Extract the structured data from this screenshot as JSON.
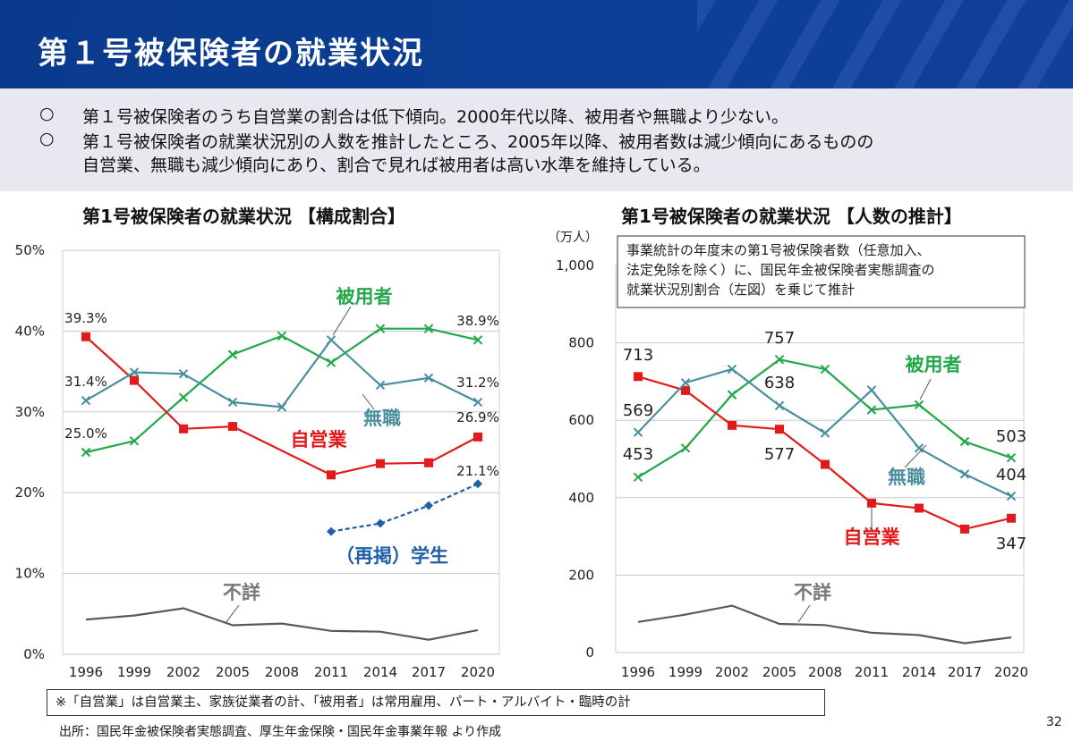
{
  "title": "第１号被保険者の就業状況",
  "summary": {
    "bullet_symbol": "○",
    "line1": "第１号被保険者のうち自営業の割合は低下傾向。2000年代以降、被用者や無職より少ない。",
    "line2": "第１号被保険者の就業状況別の人数を推計したところ、2005年以降、被用者数は減少傾向にあるものの",
    "line3": "自営業、無職も減少傾向にあり、割合で見れば被用者は高い水準を維持している。"
  },
  "chart_data": [
    {
      "type": "line",
      "title": "第1号被保険者の就業状況 【構成割合】",
      "x": [
        "1996",
        "1999",
        "2002",
        "2005",
        "2008",
        "2011",
        "2014",
        "2017",
        "2020"
      ],
      "ylim": [
        0,
        50
      ],
      "yticks": [
        "0%",
        "10%",
        "20%",
        "30%",
        "40%",
        "50%"
      ],
      "series": [
        {
          "name": "被用者",
          "color": "#22a84a",
          "marker": "x",
          "values": [
            25.0,
            26.4,
            31.8,
            37.1,
            39.4,
            36.1,
            40.3,
            40.3,
            38.9
          ]
        },
        {
          "name": "自営業",
          "color": "#e31a1c",
          "marker": "square",
          "values": [
            39.3,
            33.9,
            27.9,
            28.2,
            null,
            22.2,
            23.6,
            23.7,
            26.9
          ]
        },
        {
          "name": "無職",
          "color": "#4a8f9f",
          "marker": "x",
          "values": [
            31.4,
            34.9,
            34.7,
            31.2,
            30.6,
            38.9,
            33.3,
            34.2,
            31.2
          ]
        },
        {
          "name": "（再掲）学生",
          "color": "#1f5fa8",
          "marker": "diamond",
          "dashed": true,
          "values": [
            null,
            null,
            null,
            null,
            null,
            15.2,
            16.2,
            18.4,
            21.1
          ]
        },
        {
          "name": "不詳",
          "color": "#595959",
          "marker": "none",
          "values": [
            4.3,
            4.8,
            5.7,
            3.6,
            3.8,
            2.9,
            2.8,
            1.8,
            3.0
          ]
        }
      ],
      "data_labels": [
        "39.3%",
        "31.4%",
        "25.0%",
        "38.9%",
        "31.2%",
        "26.9%",
        "21.1%"
      ]
    },
    {
      "type": "line",
      "title": "第1号被保険者の就業状況 【人数の推計】",
      "unit": "（万人）",
      "x": [
        "1996",
        "1999",
        "2002",
        "2005",
        "2008",
        "2011",
        "2014",
        "2017",
        "2020"
      ],
      "ylim": [
        0,
        1000
      ],
      "yticks": [
        "0",
        "200",
        "400",
        "600",
        "800",
        "1,000"
      ],
      "note": [
        "事業統計の年度末の第1号被保険者数（任意加入、",
        "法定免除を除く）に、国民年金被保険者実態調査の",
        "就業状況別割合（左図）を乗じて推計"
      ],
      "series": [
        {
          "name": "被用者",
          "color": "#22a84a",
          "marker": "x",
          "values": [
            453,
            528,
            666,
            757,
            732,
            627,
            640,
            545,
            503
          ]
        },
        {
          "name": "自営業",
          "color": "#e31a1c",
          "marker": "square",
          "values": [
            713,
            677,
            587,
            577,
            486,
            386,
            373,
            319,
            347
          ]
        },
        {
          "name": "無職",
          "color": "#4a8f9f",
          "marker": "x",
          "values": [
            569,
            697,
            732,
            638,
            567,
            678,
            528,
            461,
            404
          ]
        },
        {
          "name": "不詳",
          "color": "#595959",
          "marker": "none",
          "values": [
            79,
            98,
            121,
            74,
            71,
            51,
            45,
            24,
            39
          ]
        }
      ],
      "data_labels": [
        "713",
        "569",
        "453",
        "757",
        "638",
        "577",
        "503",
        "404",
        "347"
      ]
    }
  ],
  "footnote": "※「自営業」は自営業主、家族従業者の計、「被用者」は常用雇用、パート・アルバイト・臨時の計",
  "source": "出所：国民年金被保険者実態調査、厚生年金保険・国民年金事業年報 より作成",
  "page_number": "32"
}
